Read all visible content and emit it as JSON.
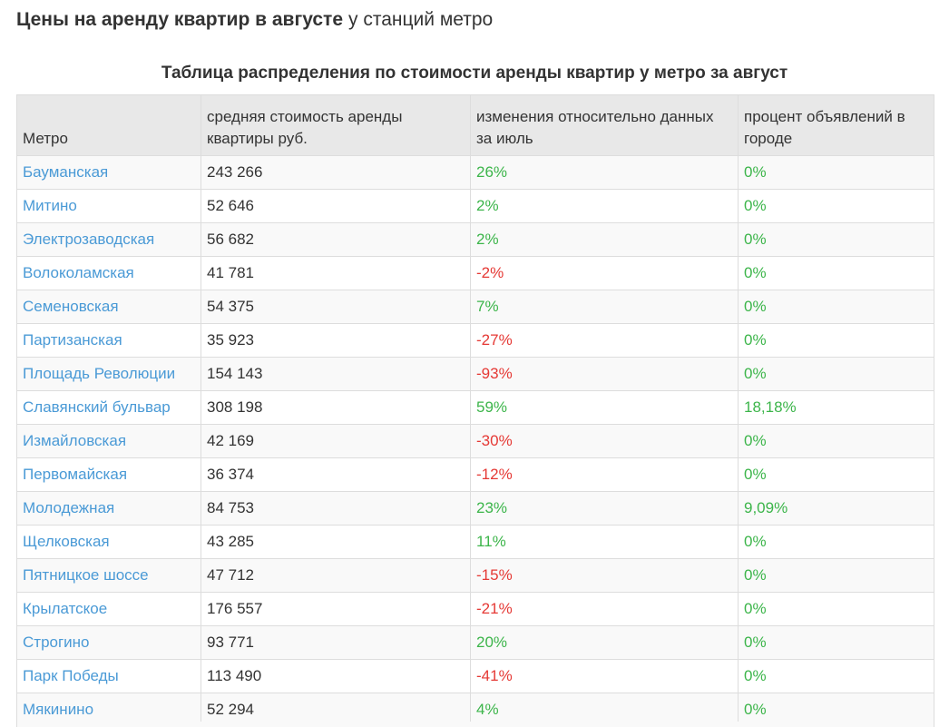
{
  "header": {
    "title_bold": "Цены на аренду квартир в августе",
    "title_rest": "у станций метро"
  },
  "table": {
    "caption": "Таблица распределения по стоимости аренды квартир у метро за август",
    "columns": [
      "Метро",
      "средняя стоимость аренды квартиры руб.",
      "изменения относительно данных за июль",
      "процент объявлений в городе"
    ],
    "rows": [
      [
        "Бауманская",
        "243 266",
        "26%",
        "0%"
      ],
      [
        "Митино",
        "52 646",
        "2%",
        "0%"
      ],
      [
        "Электрозаводская",
        "56 682",
        "2%",
        "0%"
      ],
      [
        "Волоколамская",
        "41 781",
        "-2%",
        "0%"
      ],
      [
        "Семеновская",
        "54 375",
        "7%",
        "0%"
      ],
      [
        "Партизанская",
        "35 923",
        "-27%",
        "0%"
      ],
      [
        "Площадь Революции",
        "154 143",
        "-93%",
        "0%"
      ],
      [
        "Славянский бульвар",
        "308 198",
        "59%",
        "18,18%"
      ],
      [
        "Измайловская",
        "42 169",
        "-30%",
        "0%"
      ],
      [
        "Первомайская",
        "36 374",
        "-12%",
        "0%"
      ],
      [
        "Молодежная",
        "84 753",
        "23%",
        "9,09%"
      ],
      [
        "Щелковская",
        "43 285",
        "11%",
        "0%"
      ],
      [
        "Пятницкое шоссе",
        "47 712",
        "-15%",
        "0%"
      ],
      [
        "Крылатское",
        "176 557",
        "-21%",
        "0%"
      ],
      [
        "Строгино",
        "93 771",
        "20%",
        "0%"
      ],
      [
        "Парк Победы",
        "113 490",
        "-41%",
        "0%"
      ],
      [
        "Мякинино",
        "52 294",
        "4%",
        "0%"
      ]
    ]
  }
}
